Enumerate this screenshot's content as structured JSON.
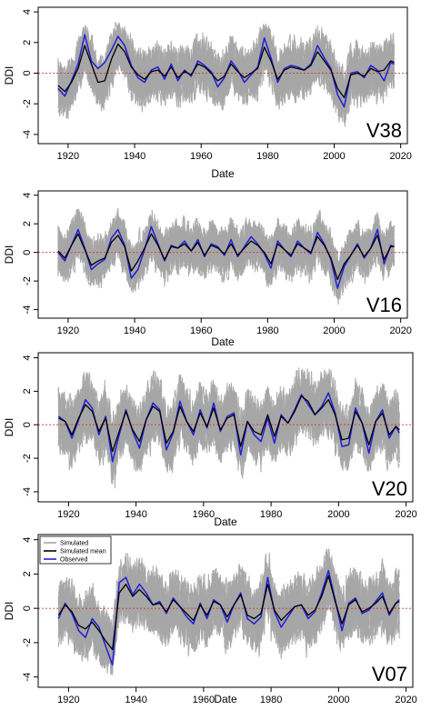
{
  "colors": {
    "simulated": "#a6a6a6",
    "simulated_mean": "#000000",
    "observed": "#1f1fd6",
    "zero_line": "#d23a2a",
    "frame": "#000000"
  },
  "legend": {
    "items": [
      {
        "label": "Simulated",
        "color": "#a6a6a6"
      },
      {
        "label": "Simulated mean",
        "color": "#000000"
      },
      {
        "label": "Observed",
        "color": "#1f1fd6"
      }
    ]
  },
  "chart_data": [
    {
      "type": "line",
      "panel_label": "V38",
      "xlabel": "Date",
      "ylabel": "DDI",
      "xlim": [
        1911,
        2022
      ],
      "ylim": [
        -4.6,
        4.3
      ],
      "xticks": [
        1920,
        1940,
        1960,
        1980,
        2000,
        2020
      ],
      "yticks": [
        -4,
        -2,
        0,
        2,
        4
      ],
      "x_range": [
        1917,
        2018
      ],
      "reference_line": 0,
      "envelope": {
        "lower": -3.2,
        "upper": 2.8
      },
      "series": [
        {
          "name": "Observed",
          "x": [
            1917,
            1919,
            1921,
            1923,
            1925,
            1927,
            1929,
            1931,
            1933,
            1935,
            1937,
            1939,
            1941,
            1943,
            1945,
            1947,
            1949,
            1951,
            1953,
            1955,
            1957,
            1959,
            1961,
            1963,
            1965,
            1967,
            1969,
            1971,
            1973,
            1975,
            1977,
            1979,
            1981,
            1983,
            1985,
            1987,
            1989,
            1991,
            1993,
            1995,
            1997,
            1999,
            2001,
            2003,
            2005,
            2007,
            2009,
            2011,
            2013,
            2015,
            2017,
            2018
          ],
          "y": [
            -1.0,
            -1.5,
            -0.5,
            0.6,
            2.5,
            0.8,
            0.3,
            0.7,
            1.5,
            2.4,
            1.8,
            0.5,
            -0.3,
            -0.6,
            0.2,
            0.4,
            -0.4,
            0.6,
            -0.5,
            0.2,
            -0.2,
            0.8,
            0.5,
            0.1,
            -0.9,
            -0.3,
            0.8,
            0.2,
            -0.6,
            -0.1,
            0.4,
            2.3,
            1.0,
            -0.6,
            0.3,
            0.5,
            0.4,
            0.2,
            0.6,
            1.8,
            1.0,
            0.3,
            -1.4,
            -2.2,
            0.0,
            0.1,
            -0.3,
            0.5,
            0.2,
            -0.5,
            0.7,
            0.6
          ]
        },
        {
          "name": "Simulated mean",
          "x": [
            1917,
            1919,
            1921,
            1923,
            1925,
            1927,
            1929,
            1931,
            1933,
            1935,
            1937,
            1939,
            1941,
            1943,
            1945,
            1947,
            1949,
            1951,
            1953,
            1955,
            1957,
            1959,
            1961,
            1963,
            1965,
            1967,
            1969,
            1971,
            1973,
            1975,
            1977,
            1979,
            1981,
            1983,
            1985,
            1987,
            1989,
            1991,
            1993,
            1995,
            1997,
            1999,
            2001,
            2003,
            2005,
            2007,
            2009,
            2011,
            2013,
            2015,
            2017,
            2018
          ],
          "y": [
            -0.8,
            -1.2,
            -0.6,
            0.3,
            1.8,
            0.6,
            -0.6,
            -0.5,
            0.9,
            1.9,
            1.4,
            0.4,
            -0.1,
            -0.4,
            0.1,
            0.2,
            -0.2,
            0.4,
            -0.3,
            0.1,
            -0.1,
            0.6,
            0.4,
            0.0,
            -0.5,
            -0.2,
            0.6,
            0.1,
            -0.3,
            0.0,
            0.3,
            1.7,
            0.8,
            -0.4,
            0.2,
            0.4,
            0.3,
            0.2,
            0.5,
            1.4,
            0.8,
            0.2,
            -1.0,
            -1.6,
            -0.1,
            0.0,
            -0.2,
            0.3,
            0.1,
            0.2,
            0.8,
            0.7
          ]
        }
      ]
    },
    {
      "type": "line",
      "panel_label": "V16",
      "xlabel": "Date",
      "ylabel": "DDI",
      "xlim": [
        1911,
        2022
      ],
      "ylim": [
        -4.6,
        4.3
      ],
      "xticks": [
        1920,
        1940,
        1960,
        1980,
        2000,
        2020
      ],
      "yticks": [
        -4,
        -2,
        0,
        2,
        4
      ],
      "x_range": [
        1917,
        2018
      ],
      "reference_line": 0,
      "envelope": {
        "lower": -3.0,
        "upper": 2.8
      },
      "series": [
        {
          "name": "Observed",
          "x": [
            1917,
            1919,
            1921,
            1923,
            1925,
            1927,
            1929,
            1931,
            1933,
            1935,
            1937,
            1939,
            1941,
            1943,
            1945,
            1947,
            1949,
            1951,
            1953,
            1955,
            1957,
            1959,
            1961,
            1963,
            1965,
            1967,
            1969,
            1971,
            1973,
            1975,
            1977,
            1979,
            1981,
            1983,
            1985,
            1987,
            1989,
            1991,
            1993,
            1995,
            1997,
            1999,
            2001,
            2003,
            2005,
            2007,
            2009,
            2011,
            2013,
            2015,
            2017,
            2018
          ],
          "y": [
            0.0,
            -0.6,
            0.5,
            1.6,
            0.3,
            -1.2,
            -0.8,
            -0.5,
            1.0,
            1.6,
            0.5,
            -1.8,
            -1.2,
            0.2,
            1.8,
            0.6,
            -0.6,
            0.5,
            0.3,
            0.8,
            0.1,
            0.9,
            -0.3,
            0.6,
            0.4,
            -0.2,
            0.9,
            -0.3,
            0.4,
            1.1,
            0.6,
            -0.1,
            -1.1,
            0.8,
            0.2,
            -0.3,
            0.8,
            0.3,
            -0.1,
            1.4,
            0.6,
            -0.5,
            -2.5,
            -1.0,
            -0.2,
            0.6,
            -0.4,
            0.3,
            1.6,
            -0.8,
            0.5,
            0.4
          ]
        },
        {
          "name": "Simulated mean",
          "x": [
            1917,
            1919,
            1921,
            1923,
            1925,
            1927,
            1929,
            1931,
            1933,
            1935,
            1937,
            1939,
            1941,
            1943,
            1945,
            1947,
            1949,
            1951,
            1953,
            1955,
            1957,
            1959,
            1961,
            1963,
            1965,
            1967,
            1969,
            1971,
            1973,
            1975,
            1977,
            1979,
            1981,
            1983,
            1985,
            1987,
            1989,
            1991,
            1993,
            1995,
            1997,
            1999,
            2001,
            2003,
            2005,
            2007,
            2009,
            2011,
            2013,
            2015,
            2017,
            2018
          ],
          "y": [
            0.1,
            -0.4,
            0.5,
            1.3,
            0.2,
            -0.9,
            -0.6,
            -0.4,
            0.7,
            1.2,
            0.4,
            -1.3,
            -0.6,
            0.3,
            1.3,
            0.5,
            -0.5,
            0.4,
            0.3,
            0.6,
            0.1,
            0.7,
            -0.2,
            0.5,
            0.3,
            -0.1,
            0.6,
            -0.2,
            0.3,
            0.8,
            0.5,
            0.0,
            -0.8,
            0.6,
            0.2,
            -0.2,
            0.6,
            0.3,
            0.0,
            1.1,
            0.5,
            -0.4,
            -1.9,
            -0.8,
            -0.2,
            0.5,
            -0.3,
            0.3,
            1.2,
            -0.5,
            0.4,
            0.4
          ]
        }
      ]
    },
    {
      "type": "line",
      "panel_label": "V20",
      "xlabel": "Date",
      "ylabel": "DDI",
      "xlim": [
        1911,
        2022
      ],
      "ylim": [
        -4.6,
        4.3
      ],
      "xticks": [
        1920,
        1940,
        1960,
        1980,
        2000,
        2020
      ],
      "yticks": [
        -4,
        -2,
        0,
        2,
        4
      ],
      "x_range": [
        1917,
        2018
      ],
      "reference_line": 0,
      "envelope": {
        "lower": -3.4,
        "upper": 3.2
      },
      "series": [
        {
          "name": "Observed",
          "x": [
            1917,
            1919,
            1921,
            1923,
            1925,
            1927,
            1929,
            1931,
            1933,
            1935,
            1937,
            1939,
            1941,
            1943,
            1945,
            1947,
            1949,
            1951,
            1953,
            1955,
            1957,
            1959,
            1961,
            1963,
            1965,
            1967,
            1969,
            1971,
            1973,
            1975,
            1977,
            1979,
            1981,
            1983,
            1985,
            1987,
            1989,
            1991,
            1993,
            1995,
            1997,
            1999,
            2001,
            2003,
            2005,
            2007,
            2009,
            2011,
            2013,
            2015,
            2017,
            2018
          ],
          "y": [
            0.5,
            0.2,
            -0.8,
            0.3,
            1.5,
            1.0,
            -0.6,
            0.5,
            -2.2,
            -0.6,
            0.9,
            -0.4,
            -1.4,
            0.3,
            1.3,
            0.9,
            -1.5,
            -0.5,
            1.4,
            0.2,
            -0.6,
            0.9,
            -0.2,
            1.3,
            -0.4,
            0.5,
            0.7,
            -1.8,
            0.2,
            -0.6,
            -1.0,
            0.4,
            -1.1,
            0.6,
            0.1,
            0.9,
            1.8,
            1.2,
            0.6,
            1.1,
            1.9,
            0.7,
            -1.3,
            -1.2,
            1.0,
            0.1,
            -1.7,
            0.2,
            0.9,
            -0.8,
            -0.1,
            -0.5
          ]
        },
        {
          "name": "Simulated mean",
          "x": [
            1917,
            1919,
            1921,
            1923,
            1925,
            1927,
            1929,
            1931,
            1933,
            1935,
            1937,
            1939,
            1941,
            1943,
            1945,
            1947,
            1949,
            1951,
            1953,
            1955,
            1957,
            1959,
            1961,
            1963,
            1965,
            1967,
            1969,
            1971,
            1973,
            1975,
            1977,
            1979,
            1981,
            1983,
            1985,
            1987,
            1989,
            1991,
            1993,
            1995,
            1997,
            1999,
            2001,
            2003,
            2005,
            2007,
            2009,
            2011,
            2013,
            2015,
            2017,
            2018
          ],
          "y": [
            0.4,
            0.2,
            -0.6,
            0.4,
            1.2,
            0.8,
            -0.4,
            0.4,
            -1.6,
            -0.4,
            0.8,
            -0.3,
            -1.0,
            0.3,
            1.1,
            0.8,
            -1.1,
            -0.4,
            1.1,
            0.2,
            -0.4,
            0.7,
            -0.1,
            1.0,
            -0.3,
            0.4,
            0.6,
            -1.3,
            0.2,
            -0.4,
            -0.6,
            0.6,
            -0.7,
            0.5,
            0.1,
            0.8,
            1.7,
            1.4,
            0.6,
            1.0,
            1.5,
            0.6,
            -0.9,
            -0.8,
            0.8,
            0.1,
            -1.2,
            0.2,
            0.7,
            -0.6,
            -0.1,
            -0.3
          ]
        }
      ]
    },
    {
      "type": "line",
      "panel_label": "V07",
      "xlabel": "Date",
      "ylabel": "DDI",
      "xlim": [
        1911,
        2022
      ],
      "ylim": [
        -4.6,
        4.3
      ],
      "xticks": [
        1920,
        1940,
        1960,
        1980,
        2000,
        2020
      ],
      "yticks": [
        -4,
        -2,
        0,
        2,
        4
      ],
      "x_range": [
        1917,
        2018
      ],
      "reference_line": 0,
      "envelope": {
        "lower": -3.3,
        "upper": 3.0
      },
      "legend_position": "top-left",
      "series": [
        {
          "name": "Observed",
          "x": [
            1917,
            1919,
            1921,
            1923,
            1925,
            1927,
            1929,
            1931,
            1933,
            1935,
            1937,
            1939,
            1941,
            1943,
            1945,
            1947,
            1949,
            1951,
            1953,
            1955,
            1957,
            1959,
            1961,
            1963,
            1965,
            1967,
            1969,
            1971,
            1973,
            1975,
            1977,
            1979,
            1981,
            1983,
            1985,
            1987,
            1989,
            1991,
            1993,
            1995,
            1997,
            1999,
            2001,
            2003,
            2005,
            2007,
            2009,
            2011,
            2013,
            2015,
            2017,
            2018
          ],
          "y": [
            -0.6,
            0.3,
            -0.3,
            -1.3,
            -1.7,
            -0.6,
            -1.1,
            -2.2,
            -3.3,
            1.5,
            1.8,
            0.8,
            1.4,
            0.9,
            0.2,
            0.4,
            -0.3,
            0.6,
            0.1,
            -0.5,
            -0.9,
            0.3,
            -0.6,
            0.5,
            0.2,
            -0.8,
            0.2,
            0.9,
            -0.6,
            -0.9,
            -0.5,
            1.8,
            -0.2,
            -1.1,
            -0.5,
            0.1,
            0.2,
            -0.6,
            -0.2,
            0.9,
            2.2,
            0.5,
            -1.3,
            0.3,
            0.6,
            -0.3,
            -0.1,
            0.4,
            0.9,
            -0.4,
            0.3,
            0.5
          ]
        },
        {
          "name": "Simulated mean",
          "x": [
            1917,
            1919,
            1921,
            1923,
            1925,
            1927,
            1929,
            1931,
            1933,
            1935,
            1937,
            1939,
            1941,
            1943,
            1945,
            1947,
            1949,
            1951,
            1953,
            1955,
            1957,
            1959,
            1961,
            1963,
            1965,
            1967,
            1969,
            1971,
            1973,
            1975,
            1977,
            1979,
            1981,
            1983,
            1985,
            1987,
            1989,
            1991,
            1993,
            1995,
            1997,
            1999,
            2001,
            2003,
            2005,
            2007,
            2009,
            2011,
            2013,
            2015,
            2017,
            2018
          ],
          "y": [
            -0.4,
            0.2,
            -0.2,
            -1.0,
            -1.2,
            -0.8,
            -1.3,
            -1.9,
            -2.4,
            0.9,
            1.4,
            0.7,
            1.1,
            0.7,
            0.2,
            0.3,
            -0.2,
            0.5,
            0.1,
            -0.3,
            -0.7,
            0.2,
            -0.4,
            0.4,
            0.2,
            -0.5,
            0.2,
            0.8,
            -0.4,
            -0.6,
            -0.3,
            1.4,
            -0.1,
            -0.7,
            -0.3,
            0.1,
            0.2,
            -0.4,
            -0.1,
            0.7,
            1.9,
            0.4,
            -0.9,
            0.2,
            0.5,
            -0.2,
            0.0,
            0.3,
            0.7,
            -0.3,
            0.3,
            0.4
          ]
        }
      ]
    }
  ]
}
